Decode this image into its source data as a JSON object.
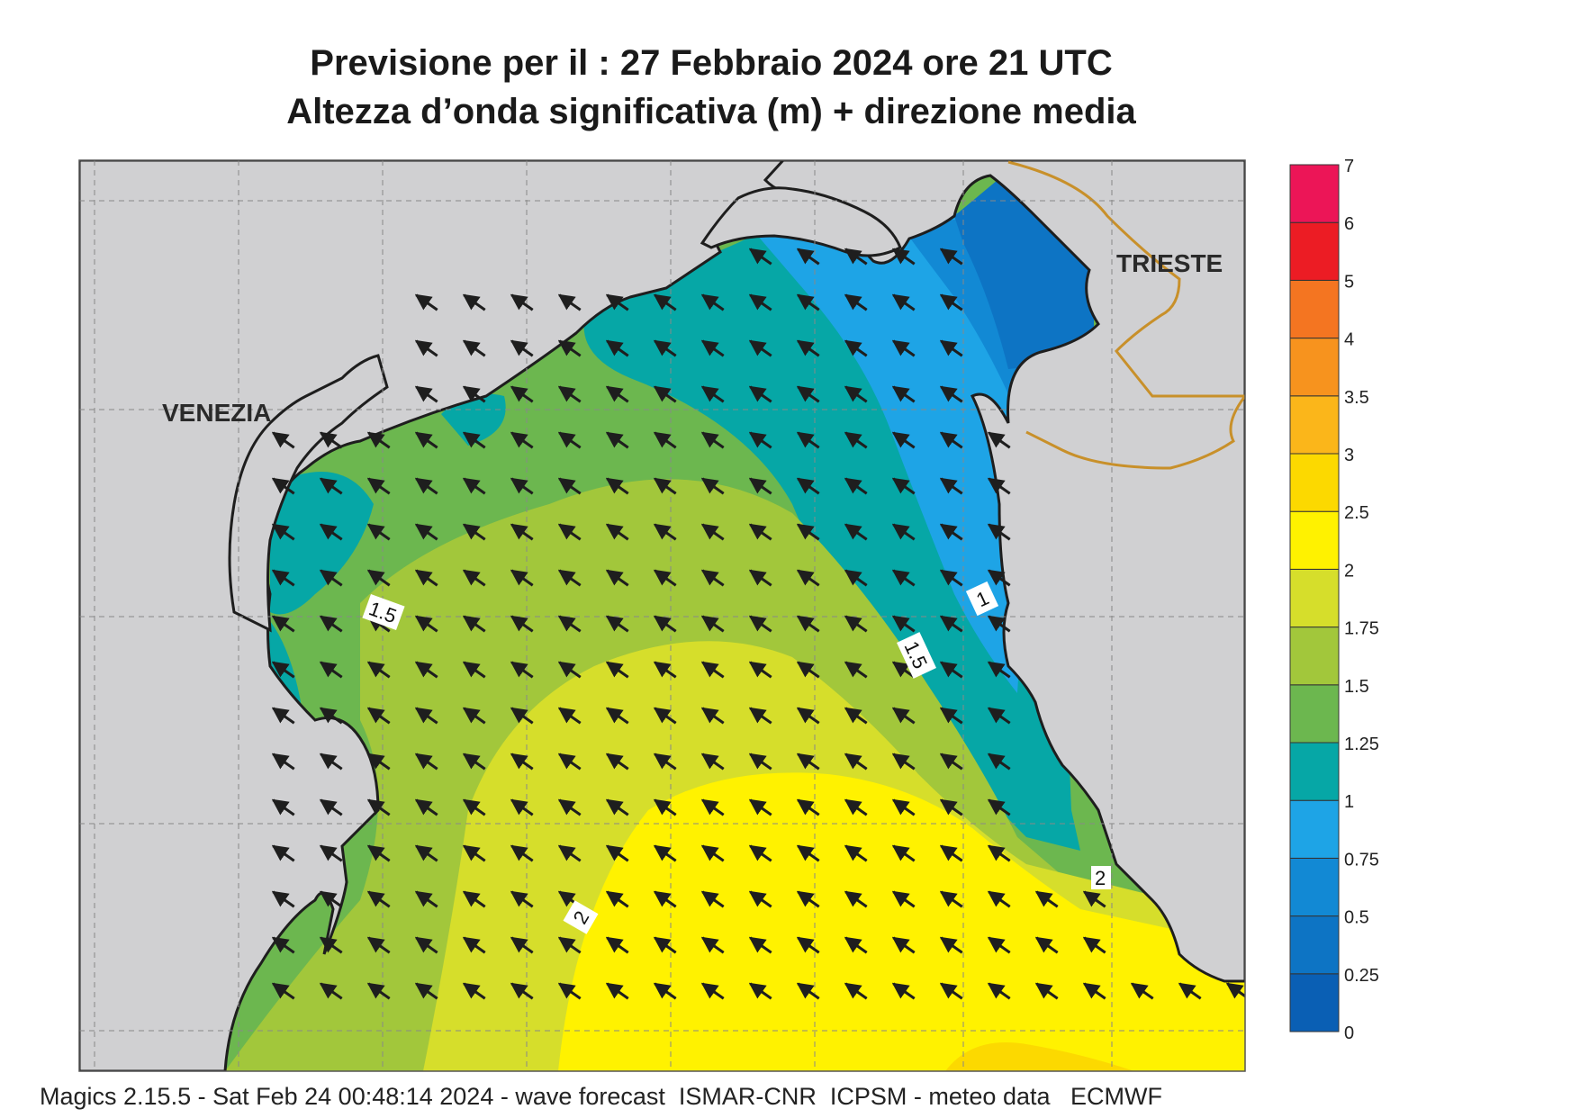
{
  "title": {
    "line1": "Previsione per il  :  27  Febbraio 2024   ore 21 UTC",
    "line2": "Altezza d’onda significativa (m) + direzione media"
  },
  "footer": "Magics 2.15.5 - Sat Feb 24 00:48:14 2024 - wave forecast  ISMAR-CNR  ICPSM - meteo data   ECMWF",
  "cities": [
    {
      "name": "VENEZIA"
    },
    {
      "name": "TRIESTE"
    }
  ],
  "contour_labels": [
    "1.5",
    "1",
    "1.5",
    "2",
    "2"
  ],
  "colors": {
    "land": "#d0d0d2",
    "coast": "#1e1e1e",
    "border": "#c8902a",
    "arrow": "#1e1e1e"
  },
  "legend": {
    "ticks": [
      "0",
      "0.25",
      "0.5",
      "0.75",
      "1",
      "1.25",
      "1.5",
      "1.75",
      "2",
      "2.5",
      "3",
      "3.5",
      "4",
      "5",
      "6",
      "7"
    ],
    "colors": [
      "#0a5fb4",
      "#0d74c4",
      "#1289d4",
      "#1ea4e6",
      "#06a7a6",
      "#6cb74f",
      "#a2c73b",
      "#d6de2b",
      "#fff200",
      "#fcd900",
      "#fbb61a",
      "#f7931e",
      "#f47521",
      "#ec1c24",
      "#ec1557"
    ]
  },
  "wave_direction_deg": "NW"
}
